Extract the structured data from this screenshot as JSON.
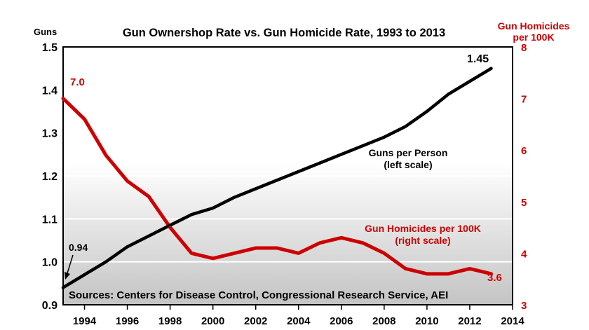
{
  "colors": {
    "black_series": "#000000",
    "red_series": "#cc0000",
    "gridline": "#ffffff",
    "plot_top": "#ffffff",
    "plot_bottom": "#c4c4c4"
  },
  "chart_data": {
    "type": "line",
    "title": "Gun Ownershop Rate vs. Gun Homicide Rate, 1993 to 2013",
    "left_axis_label": "Guns",
    "right_axis_label": [
      "Gun Homicides",
      "per 100K"
    ],
    "xlim": [
      1993,
      2014
    ],
    "x_ticks": [
      "1994",
      "1996",
      "1998",
      "2000",
      "2002",
      "2004",
      "2006",
      "2008",
      "2010",
      "2012",
      "2014"
    ],
    "ylim_left": [
      0.9,
      1.5
    ],
    "y_ticks_left": [
      "0.9",
      "1.0",
      "1.1",
      "1.2",
      "1.3",
      "1.4",
      "1.5"
    ],
    "ylim_right": [
      3,
      8
    ],
    "y_ticks_right": [
      "3",
      "4",
      "5",
      "6",
      "7",
      "8"
    ],
    "grid": true,
    "series": [
      {
        "name": "Guns per Person",
        "axis": "left",
        "x": [
          1993,
          1994,
          1995,
          1996,
          1997,
          1998,
          1999,
          2000,
          2001,
          2002,
          2003,
          2004,
          2005,
          2006,
          2007,
          2008,
          2009,
          2010,
          2011,
          2012,
          2013
        ],
        "y": [
          0.94,
          0.97,
          1.0,
          1.035,
          1.06,
          1.085,
          1.11,
          1.125,
          1.15,
          1.17,
          1.19,
          1.21,
          1.23,
          1.25,
          1.27,
          1.29,
          1.315,
          1.35,
          1.39,
          1.42,
          1.45
        ]
      },
      {
        "name": "Gun Homicides per 100K",
        "axis": "right",
        "x": [
          1993,
          1994,
          1995,
          1996,
          1997,
          1998,
          1999,
          2000,
          2001,
          2002,
          2003,
          2004,
          2005,
          2006,
          2007,
          2008,
          2009,
          2010,
          2011,
          2012,
          2013
        ],
        "y": [
          7.0,
          6.6,
          5.9,
          5.4,
          5.1,
          4.5,
          4.0,
          3.9,
          4.0,
          4.1,
          4.1,
          4.0,
          4.2,
          4.3,
          4.2,
          4.0,
          3.7,
          3.6,
          3.6,
          3.7,
          3.6
        ]
      }
    ],
    "annotations": {
      "guns_start": "0.94",
      "guns_end": "1.45",
      "homicide_start": "7.0",
      "homicide_end": "3.6",
      "guns_label": [
        "Guns per Person",
        "(left scale)"
      ],
      "homicide_label": [
        "Gun Homicides per 100K",
        "(right scale)"
      ],
      "source": "Sources: Centers for Disease Control, Congressional Research Service, AEI"
    }
  }
}
